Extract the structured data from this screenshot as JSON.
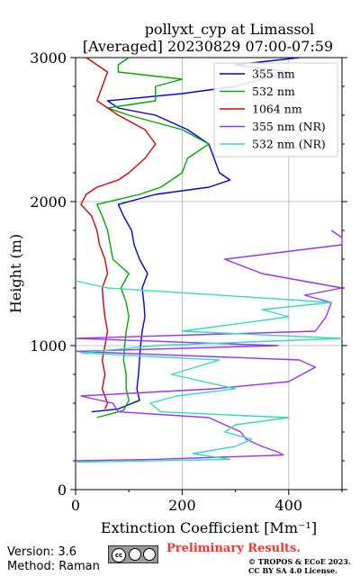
{
  "chart_data": {
    "type": "line",
    "title": "pollyxt_cyp at Limassol",
    "subtitle": "[Averaged] 20230829 07:00-07:59",
    "xlabel": "Extinction Coefficient [Mm⁻¹]",
    "ylabel": "Height (m)",
    "xlim": [
      0,
      500
    ],
    "ylim": [
      0,
      3000
    ],
    "xticks": [
      "0",
      "200",
      "400"
    ],
    "yticks": [
      "0",
      "1000",
      "2000",
      "3000"
    ],
    "grid": true,
    "legend_position": "top-right",
    "series": [
      {
        "name": "355 nm",
        "color": "#0000ee",
        "points": [
          [
            30,
            540
          ],
          [
            80,
            560
          ],
          [
            120,
            620
          ],
          [
            115,
            700
          ],
          [
            118,
            800
          ],
          [
            120,
            900
          ],
          [
            122,
            1000
          ],
          [
            125,
            1100
          ],
          [
            130,
            1200
          ],
          [
            128,
            1300
          ],
          [
            125,
            1400
          ],
          [
            135,
            1500
          ],
          [
            120,
            1600
          ],
          [
            110,
            1700
          ],
          [
            105,
            1800
          ],
          [
            90,
            1900
          ],
          [
            80,
            1980
          ],
          [
            150,
            2050
          ],
          [
            250,
            2100
          ],
          [
            290,
            2150
          ],
          [
            270,
            2200
          ],
          [
            260,
            2300
          ],
          [
            250,
            2400
          ],
          [
            210,
            2500
          ],
          [
            150,
            2600
          ],
          [
            80,
            2650
          ],
          [
            60,
            2700
          ],
          [
            200,
            2750
          ],
          [
            300,
            2800
          ],
          [
            350,
            2850
          ],
          [
            400,
            2900
          ],
          [
            300,
            2950
          ],
          [
            420,
            3000
          ]
        ]
      },
      {
        "name": "532 nm",
        "color": "#00aa00",
        "points": [
          [
            40,
            500
          ],
          [
            90,
            550
          ],
          [
            100,
            620
          ],
          [
            95,
            700
          ],
          [
            95,
            800
          ],
          [
            90,
            900
          ],
          [
            92,
            1000
          ],
          [
            95,
            1100
          ],
          [
            100,
            1200
          ],
          [
            95,
            1300
          ],
          [
            85,
            1400
          ],
          [
            100,
            1500
          ],
          [
            70,
            1600
          ],
          [
            65,
            1700
          ],
          [
            60,
            1800
          ],
          [
            50,
            1900
          ],
          [
            40,
            1980
          ],
          [
            120,
            2050
          ],
          [
            160,
            2100
          ],
          [
            200,
            2200
          ],
          [
            210,
            2300
          ],
          [
            250,
            2400
          ],
          [
            200,
            2500
          ],
          [
            100,
            2600
          ],
          [
            60,
            2650
          ],
          [
            150,
            2700
          ],
          [
            150,
            2800
          ],
          [
            200,
            2850
          ],
          [
            80,
            2900
          ],
          [
            80,
            2950
          ],
          [
            100,
            3000
          ]
        ]
      },
      {
        "name": "1064 nm",
        "color": "#dd0000",
        "points": [
          [
            55,
            560
          ],
          [
            60,
            600
          ],
          [
            50,
            700
          ],
          [
            55,
            800
          ],
          [
            50,
            900
          ],
          [
            55,
            1000
          ],
          [
            60,
            1100
          ],
          [
            55,
            1200
          ],
          [
            52,
            1300
          ],
          [
            50,
            1400
          ],
          [
            60,
            1500
          ],
          [
            55,
            1600
          ],
          [
            45,
            1700
          ],
          [
            40,
            1800
          ],
          [
            30,
            1900
          ],
          [
            10,
            1980
          ],
          [
            20,
            2050
          ],
          [
            40,
            2100
          ],
          [
            80,
            2150
          ],
          [
            100,
            2200
          ],
          [
            130,
            2300
          ],
          [
            150,
            2400
          ],
          [
            130,
            2500
          ],
          [
            80,
            2600
          ],
          [
            40,
            2700
          ],
          [
            50,
            2800
          ],
          [
            60,
            2900
          ],
          [
            20,
            3000
          ]
        ]
      },
      {
        "name": "355 nm (NR)",
        "color": "#9b30ff",
        "points": [
          [
            0,
            200
          ],
          [
            150,
            210
          ],
          [
            390,
            240
          ],
          [
            380,
            260
          ],
          [
            350,
            300
          ],
          [
            320,
            350
          ],
          [
            310,
            400
          ],
          [
            280,
            450
          ],
          [
            250,
            500
          ],
          [
            80,
            540
          ],
          [
            70,
            600
          ],
          [
            10,
            650
          ],
          [
            260,
            700
          ],
          [
            400,
            750
          ],
          [
            450,
            850
          ],
          [
            420,
            900
          ],
          [
            0,
            960
          ],
          [
            380,
            1000
          ],
          [
            0,
            1050
          ],
          [
            450,
            1100
          ],
          [
            470,
            1200
          ],
          [
            480,
            1300
          ],
          [
            430,
            1350
          ],
          [
            500,
            1400
          ],
          [
            350,
            1500
          ],
          [
            280,
            1600
          ],
          [
            500,
            1700
          ],
          [
            500,
            1750
          ],
          [
            480,
            1800
          ]
        ]
      },
      {
        "name": "532 nm (NR)",
        "color": "#33ddbb",
        "points": [
          [
            0,
            190
          ],
          [
            290,
            210
          ],
          [
            220,
            250
          ],
          [
            300,
            300
          ],
          [
            330,
            350
          ],
          [
            280,
            400
          ],
          [
            300,
            450
          ],
          [
            400,
            500
          ],
          [
            160,
            540
          ],
          [
            140,
            600
          ],
          [
            190,
            650
          ],
          [
            300,
            700
          ],
          [
            180,
            800
          ],
          [
            270,
            900
          ],
          [
            10,
            950
          ],
          [
            150,
            1000
          ],
          [
            500,
            1050
          ],
          [
            200,
            1100
          ],
          [
            400,
            1200
          ],
          [
            350,
            1250
          ],
          [
            480,
            1300
          ],
          [
            60,
            1400
          ],
          [
            0,
            1450
          ]
        ]
      }
    ]
  },
  "footer": {
    "version": "Version: 3.6",
    "method": "Method: Raman",
    "license_badge": "CC BY SA",
    "preliminary": "Preliminary Results.",
    "copyright_line1": "© TROPOS & ECoE 2023.",
    "copyright_line2": "CC BY SA 4.0 License."
  }
}
